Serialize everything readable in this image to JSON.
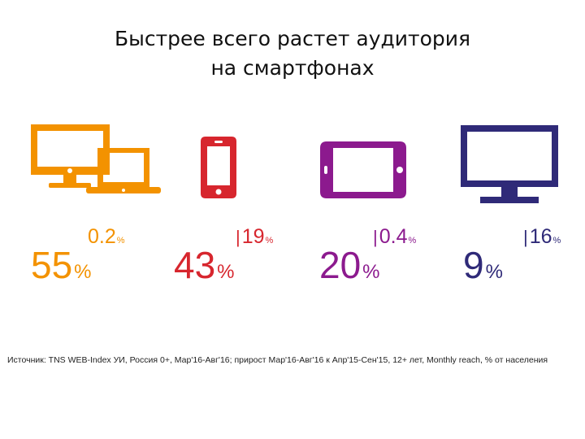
{
  "title": {
    "line1": "Быстрее всего растет аудитория",
    "line2": "на смартфонах"
  },
  "colors": {
    "desktop": "#F39200",
    "smartphone": "#D7262E",
    "tablet": "#8C1A8E",
    "tv": "#2F2A78"
  },
  "devices": [
    {
      "icon": "desktop-laptop-icon",
      "growth_prefix": "",
      "growth": "0.2",
      "growth_unit": "%",
      "share": "55",
      "share_unit": "%"
    },
    {
      "icon": "smartphone-icon",
      "growth_prefix": "|",
      "growth": "19",
      "growth_unit": "%",
      "share": "43",
      "share_unit": "%"
    },
    {
      "icon": "tablet-icon",
      "growth_prefix": "|",
      "growth": "0.4",
      "growth_unit": "%",
      "share": "20",
      "share_unit": "%"
    },
    {
      "icon": "tv-icon",
      "growth_prefix": "|",
      "growth": "16",
      "growth_unit": "%",
      "share": "9",
      "share_unit": "%"
    }
  ],
  "source": "Источник: TNS WEB-Index УИ, Россия 0+, Мар'16-Авг'16; прирост Мар'16-Авг'16 к Апр'15-Сен'15, 12+ лет, Monthly reach, % от населения"
}
